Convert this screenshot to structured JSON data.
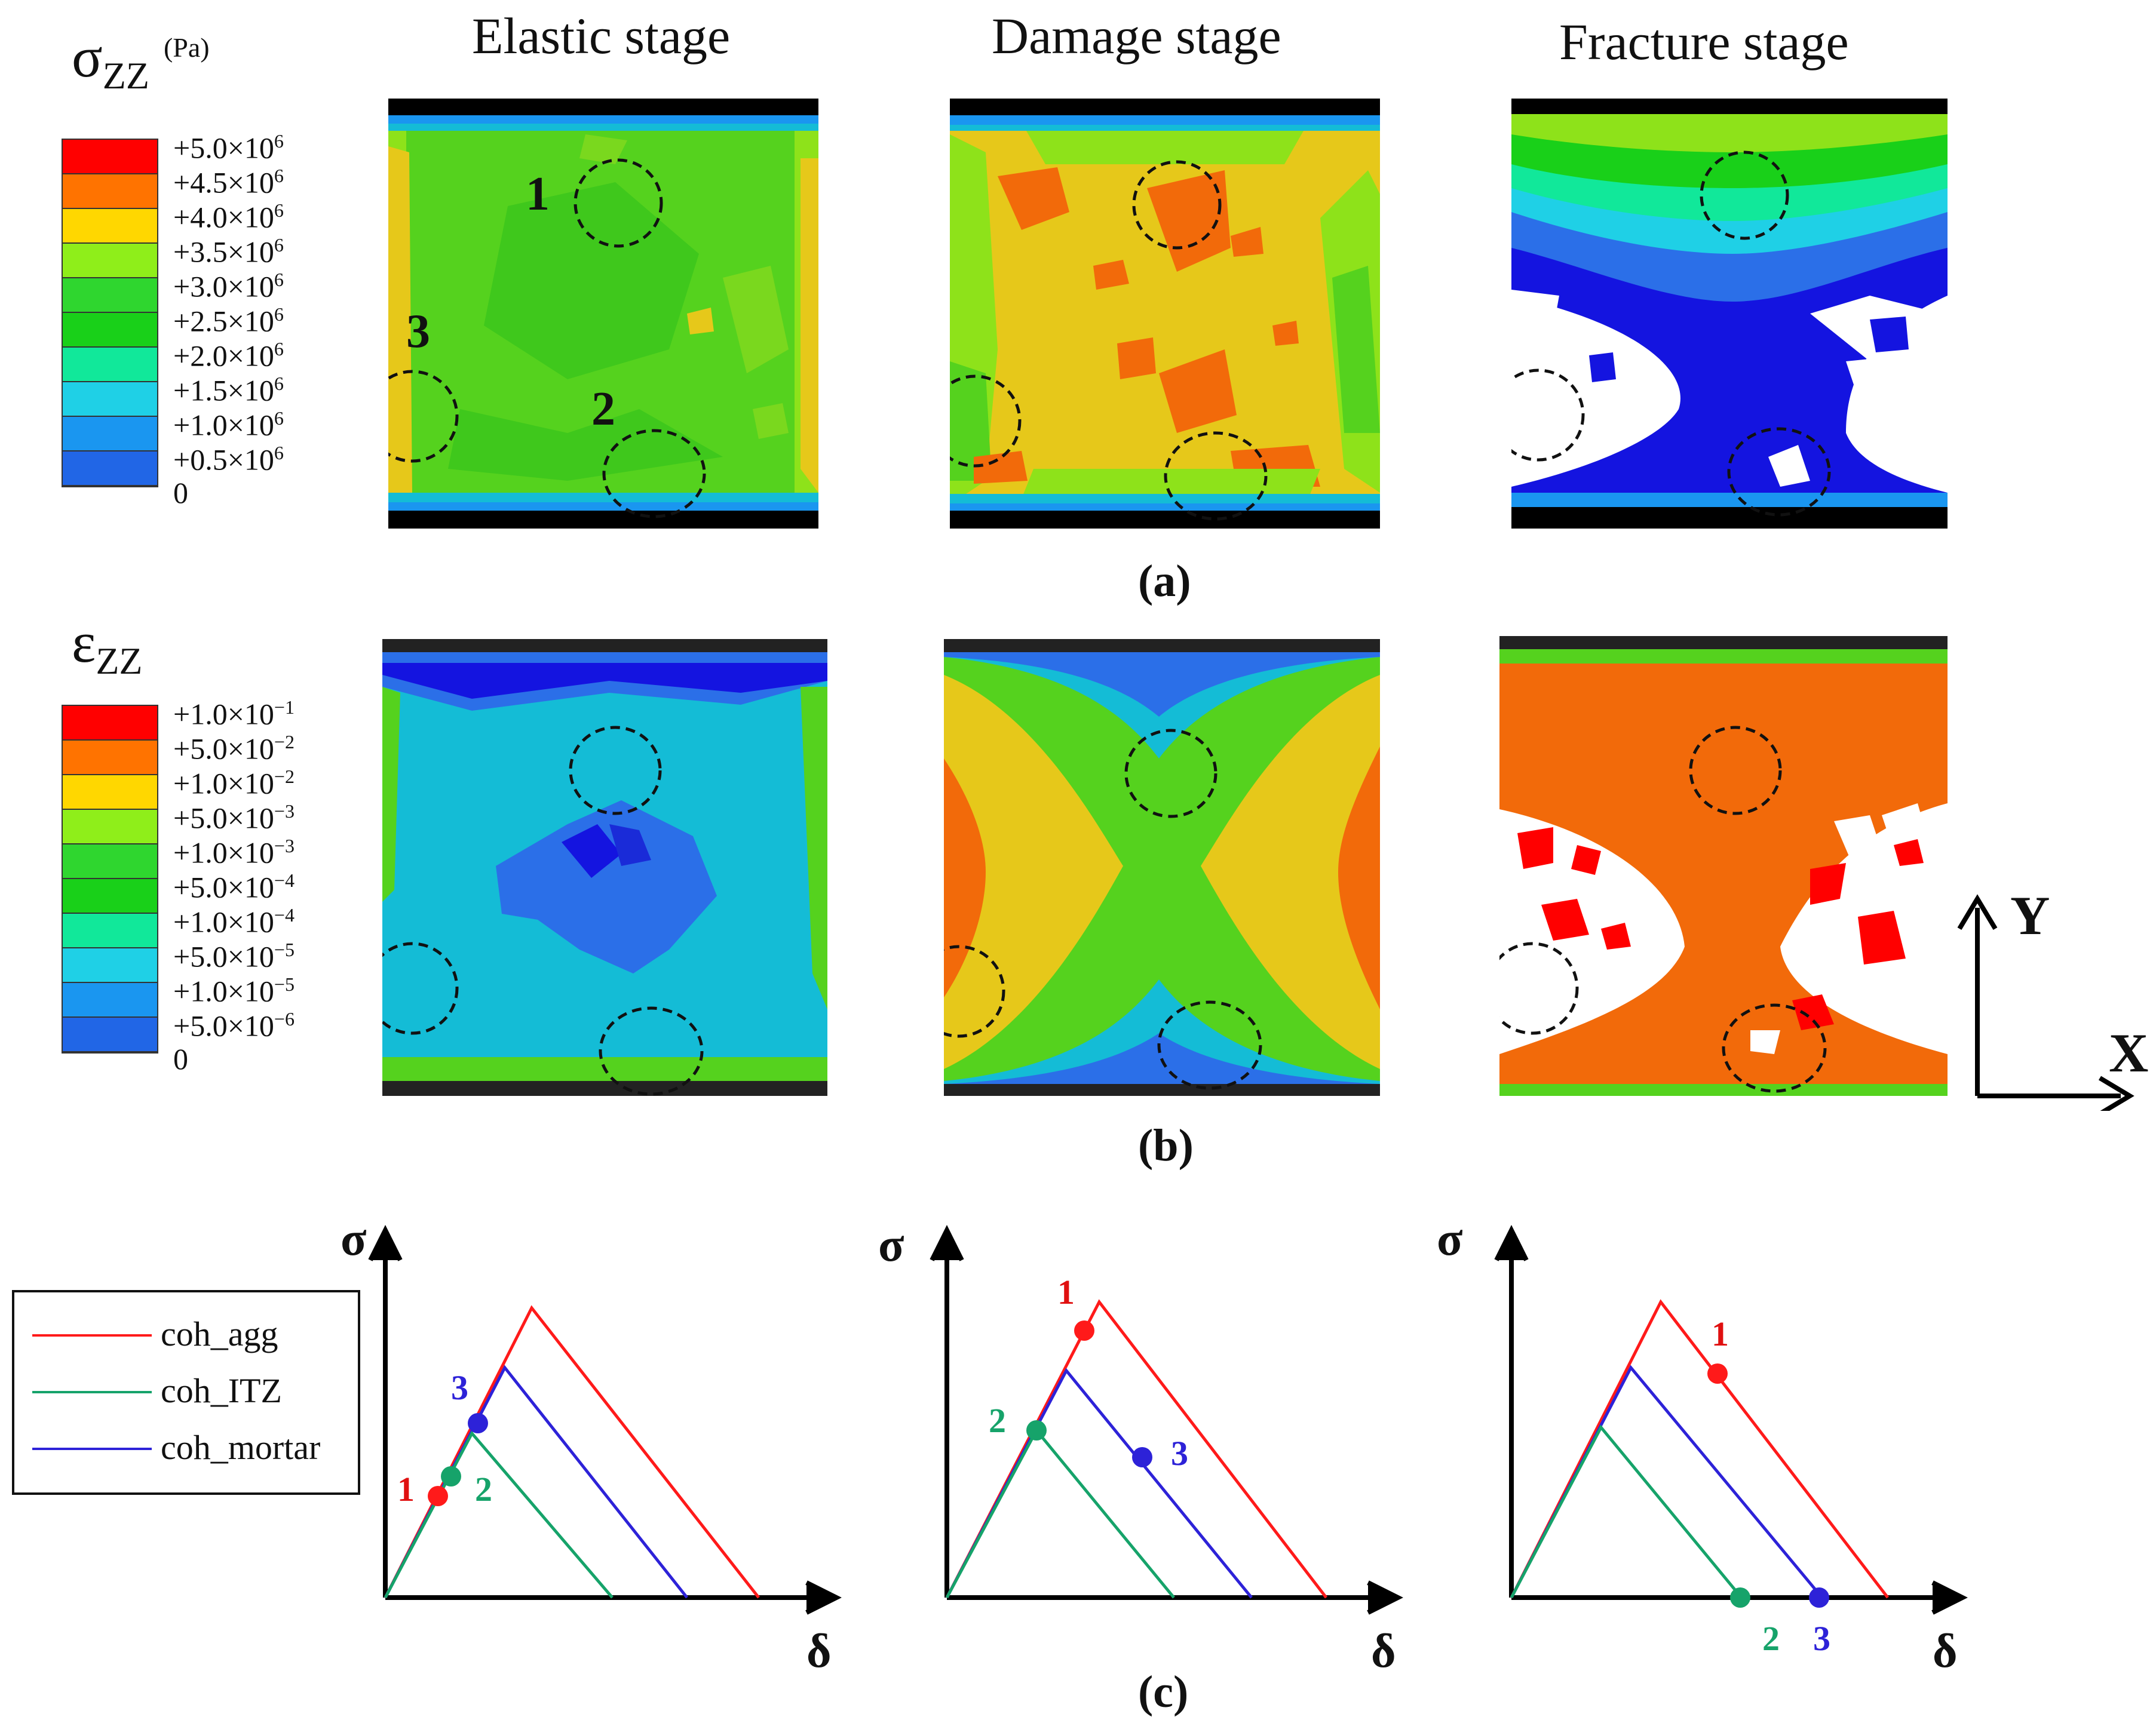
{
  "stages": [
    "Elastic stage",
    "Damage stage",
    "Fracture stage"
  ],
  "subfig_labels": {
    "a": "(a)",
    "b": "(b)",
    "c": "(c)"
  },
  "stress_legend": {
    "symbol": "σ",
    "subscript": "ZZ",
    "unit": "(Pa)",
    "levels": [
      {
        "mant": "+5.0×10",
        "exp": "6",
        "color": "#ff0000"
      },
      {
        "mant": "+4.5×10",
        "exp": "6",
        "color": "#ff7300"
      },
      {
        "mant": "+4.0×10",
        "exp": "6",
        "color": "#ffd700"
      },
      {
        "mant": "+3.5×10",
        "exp": "6",
        "color": "#8fee1a"
      },
      {
        "mant": "+3.0×10",
        "exp": "6",
        "color": "#2fd62f"
      },
      {
        "mant": "+2.5×10",
        "exp": "6",
        "color": "#19d019"
      },
      {
        "mant": "+2.0×10",
        "exp": "6",
        "color": "#11e89a"
      },
      {
        "mant": "+1.5×10",
        "exp": "6",
        "color": "#1fd0e6"
      },
      {
        "mant": "+1.0×10",
        "exp": "6",
        "color": "#1a96f0"
      },
      {
        "mant": "+0.5×10",
        "exp": "6",
        "color": "#2166e6"
      }
    ],
    "zero": "0",
    "bottom_color": "#1a1adc"
  },
  "strain_legend": {
    "symbol": "ε",
    "subscript": "ZZ",
    "levels": [
      {
        "mant": "+1.0×10",
        "exp": "−1",
        "color": "#ff0000"
      },
      {
        "mant": "+5.0×10",
        "exp": "−2",
        "color": "#ff7300"
      },
      {
        "mant": "+1.0×10",
        "exp": "−2",
        "color": "#ffd700"
      },
      {
        "mant": "+5.0×10",
        "exp": "−3",
        "color": "#8fee1a"
      },
      {
        "mant": "+1.0×10",
        "exp": "−3",
        "color": "#2fd62f"
      },
      {
        "mant": "+5.0×10",
        "exp": "−4",
        "color": "#19d019"
      },
      {
        "mant": "+1.0×10",
        "exp": "−4",
        "color": "#11e89a"
      },
      {
        "mant": "+5.0×10",
        "exp": "−5",
        "color": "#1fd0e6"
      },
      {
        "mant": "+1.0×10",
        "exp": "−5",
        "color": "#1a96f0"
      },
      {
        "mant": "+5.0×10",
        "exp": "−6",
        "color": "#2166e6"
      }
    ],
    "zero": "0",
    "bottom_color": "#1a1adc"
  },
  "region_markers": {
    "r1": "1",
    "r2": "2",
    "r3": "3"
  },
  "axes": {
    "y": "Y",
    "x": "X"
  },
  "cohesive_legend": [
    "coh_agg",
    "coh_ITZ",
    "coh_mortar"
  ],
  "cohesive_colors": {
    "agg": "#ff1a1a",
    "itz": "#16a36a",
    "mortar": "#2d22d8"
  },
  "plot_axis_labels": {
    "y": "σ",
    "x": "δ"
  },
  "point_labels": {
    "p1": "1",
    "p2": "2",
    "p3": "3"
  },
  "field_colors": {
    "green": "#55d21e",
    "lightgreen": "#8ee21a",
    "yellow": "#e6c81a",
    "orange": "#f26a0a",
    "red": "#ff0000",
    "blue": "#1414e0",
    "mid_blue": "#2b6fe8",
    "cyan": "#14bcd6",
    "aqua": "#18d8a8",
    "black": "#000000"
  }
}
